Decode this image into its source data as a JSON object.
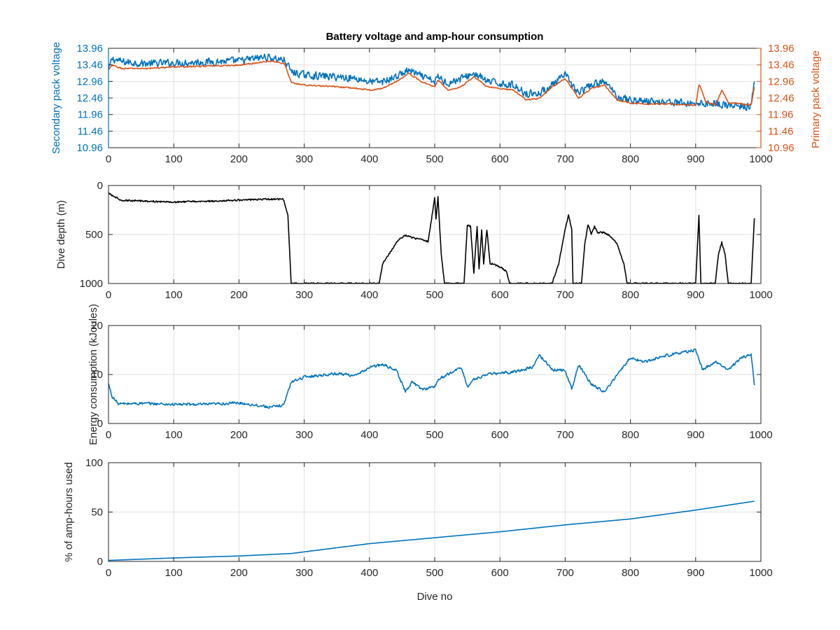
{
  "figure": {
    "title": "Battery voltage and amp-hour consumption",
    "colors": {
      "blue": "#0072BD",
      "orange": "#D95319",
      "black": "#000000",
      "axis": "#262626",
      "grid": "#e2e2e2"
    }
  },
  "chart_data": [
    {
      "type": "line",
      "title": "Battery voltage and amp-hour consumption",
      "xlabel": "",
      "ylabel": "Secondary pack voltage",
      "ylabel_right": "Primary pack voltage",
      "xlim": [
        0,
        1000
      ],
      "ylim": [
        10.96,
        13.96
      ],
      "ylim_right": [
        10.96,
        13.96
      ],
      "xticks": [
        0,
        100,
        200,
        300,
        400,
        500,
        600,
        700,
        800,
        900,
        1000
      ],
      "yticks": [
        10.96,
        11.46,
        11.96,
        12.46,
        12.96,
        13.46,
        13.96
      ],
      "ytick_labels": [
        "10.96",
        "11.46",
        "11.96",
        "12.46",
        "12.96",
        "13.46",
        "13.96"
      ],
      "grid": true,
      "series": [
        {
          "name": "",
          "axis": "left",
          "color": "#0072BD",
          "noise": 0.14,
          "x": [
            0,
            5,
            20,
            60,
            100,
            150,
            200,
            240,
            270,
            280,
            300,
            350,
            380,
            400,
            420,
            440,
            460,
            480,
            500,
            505,
            520,
            540,
            560,
            570,
            580,
            600,
            620,
            640,
            660,
            680,
            700,
            720,
            740,
            760,
            780,
            800,
            830,
            860,
            880,
            900,
            930,
            960,
            985,
            990
          ],
          "y": [
            13.3,
            13.65,
            13.55,
            13.5,
            13.52,
            13.55,
            13.58,
            13.7,
            13.6,
            13.25,
            13.15,
            13.1,
            13.05,
            12.95,
            12.95,
            13.1,
            13.3,
            13.1,
            12.95,
            13.1,
            12.9,
            13.05,
            13.2,
            13.1,
            12.95,
            12.9,
            12.85,
            12.6,
            12.6,
            12.85,
            13.15,
            12.6,
            12.85,
            12.95,
            12.5,
            12.4,
            12.35,
            12.35,
            12.3,
            12.3,
            12.3,
            12.2,
            12.2,
            13.1
          ]
        },
        {
          "name": "",
          "axis": "right",
          "color": "#D95319",
          "noise": 0.025,
          "x": [
            0,
            5,
            20,
            60,
            100,
            150,
            200,
            250,
            270,
            280,
            300,
            350,
            380,
            400,
            420,
            440,
            460,
            480,
            500,
            505,
            520,
            540,
            560,
            570,
            580,
            600,
            620,
            640,
            660,
            680,
            700,
            720,
            740,
            760,
            780,
            800,
            830,
            860,
            880,
            900,
            905,
            915,
            930,
            940,
            950,
            960,
            985,
            990
          ],
          "y": [
            13.3,
            13.45,
            13.35,
            13.35,
            13.4,
            13.42,
            13.45,
            13.58,
            13.48,
            12.92,
            12.85,
            12.8,
            12.75,
            12.7,
            12.75,
            12.95,
            13.2,
            12.95,
            12.8,
            13.0,
            12.7,
            12.8,
            13.1,
            12.95,
            12.8,
            12.75,
            12.7,
            12.4,
            12.45,
            12.8,
            13.05,
            12.45,
            12.75,
            12.85,
            12.4,
            12.3,
            12.28,
            12.28,
            12.25,
            12.25,
            12.9,
            12.35,
            12.25,
            12.7,
            12.3,
            12.3,
            12.25,
            12.85
          ]
        }
      ]
    },
    {
      "type": "line",
      "title": "",
      "xlabel": "",
      "ylabel": "Dive depth (m)",
      "xlim": [
        0,
        1000
      ],
      "ylim": [
        0,
        1000
      ],
      "y_reversed": true,
      "xticks": [
        0,
        100,
        200,
        300,
        400,
        500,
        600,
        700,
        800,
        900,
        1000
      ],
      "yticks": [
        0,
        500,
        1000
      ],
      "ytick_labels": [
        "0",
        "500",
        "1000"
      ],
      "grid": true,
      "series": [
        {
          "name": "",
          "color": "#000000",
          "noise": 8,
          "x": [
            0,
            5,
            20,
            60,
            100,
            150,
            200,
            240,
            268,
            275,
            280,
            300,
            400,
            415,
            420,
            430,
            445,
            455,
            470,
            490,
            495,
            500,
            502,
            505,
            510,
            515,
            545,
            550,
            555,
            560,
            565,
            568,
            572,
            575,
            580,
            585,
            590,
            600,
            610,
            615,
            620,
            680,
            690,
            700,
            705,
            710,
            712,
            725,
            730,
            735,
            740,
            745,
            750,
            760,
            770,
            780,
            790,
            795,
            800,
            900,
            905,
            908,
            912,
            930,
            935,
            940,
            945,
            950,
            985,
            990
          ],
          "y": [
            70,
            100,
            150,
            160,
            170,
            160,
            150,
            140,
            140,
            300,
            1000,
            1000,
            1000,
            1000,
            800,
            700,
            550,
            510,
            540,
            570,
            350,
            120,
            350,
            120,
            700,
            1000,
            1000,
            400,
            420,
            900,
            420,
            850,
            450,
            800,
            450,
            800,
            800,
            830,
            880,
            1000,
            1000,
            1000,
            800,
            450,
            300,
            450,
            1000,
            1000,
            600,
            400,
            500,
            420,
            480,
            480,
            520,
            600,
            800,
            1000,
            1000,
            1000,
            300,
            1000,
            1000,
            1000,
            700,
            580,
            700,
            1000,
            1000,
            330
          ]
        }
      ]
    },
    {
      "type": "line",
      "title": "",
      "xlabel": "",
      "ylabel": "Energy consumption (kJoules)",
      "xlim": [
        0,
        1000
      ],
      "ylim": [
        0,
        20
      ],
      "xticks": [
        0,
        100,
        200,
        300,
        400,
        500,
        600,
        700,
        800,
        900,
        1000
      ],
      "yticks": [
        0,
        10,
        20
      ],
      "ytick_labels": [
        "0",
        "10",
        "20"
      ],
      "grid": true,
      "series": [
        {
          "name": "",
          "color": "#0072BD",
          "noise": 0.35,
          "x": [
            0,
            5,
            15,
            50,
            100,
            150,
            200,
            250,
            268,
            280,
            300,
            350,
            380,
            400,
            420,
            440,
            455,
            465,
            480,
            500,
            505,
            520,
            540,
            550,
            560,
            580,
            600,
            620,
            650,
            660,
            680,
            700,
            710,
            720,
            740,
            760,
            780,
            800,
            820,
            850,
            880,
            900,
            910,
            930,
            950,
            970,
            985,
            990
          ],
          "y": [
            8,
            5.5,
            4.0,
            4.1,
            3.9,
            3.9,
            4.2,
            3.3,
            3.8,
            8.5,
            9.5,
            10.2,
            9.8,
            11.5,
            12.0,
            11.0,
            6.5,
            8.5,
            7.0,
            7.5,
            9.0,
            10.0,
            11.5,
            7.5,
            9.0,
            10.0,
            10.3,
            10.5,
            11.5,
            14.0,
            11.0,
            10.8,
            7.0,
            12.0,
            8.0,
            6.5,
            10.0,
            13.5,
            12.5,
            13.8,
            14.5,
            15.0,
            11.0,
            12.5,
            11.0,
            13.5,
            14.0,
            7.5
          ]
        }
      ]
    },
    {
      "type": "line",
      "title": "",
      "xlabel": "Dive no",
      "ylabel": "% of amp-hours used",
      "xlim": [
        0,
        1000
      ],
      "ylim": [
        0,
        100
      ],
      "xticks": [
        0,
        100,
        200,
        300,
        400,
        500,
        600,
        700,
        800,
        900,
        1000
      ],
      "yticks": [
        0,
        50,
        100
      ],
      "ytick_labels": [
        "0",
        "50",
        "100"
      ],
      "grid": true,
      "series": [
        {
          "name": "",
          "color": "#0072BD",
          "noise": 0,
          "x": [
            0,
            100,
            200,
            280,
            400,
            500,
            600,
            700,
            800,
            900,
            990
          ],
          "y": [
            1,
            3.5,
            5.5,
            8,
            18,
            24,
            30,
            37,
            43,
            52,
            61
          ]
        }
      ]
    }
  ]
}
